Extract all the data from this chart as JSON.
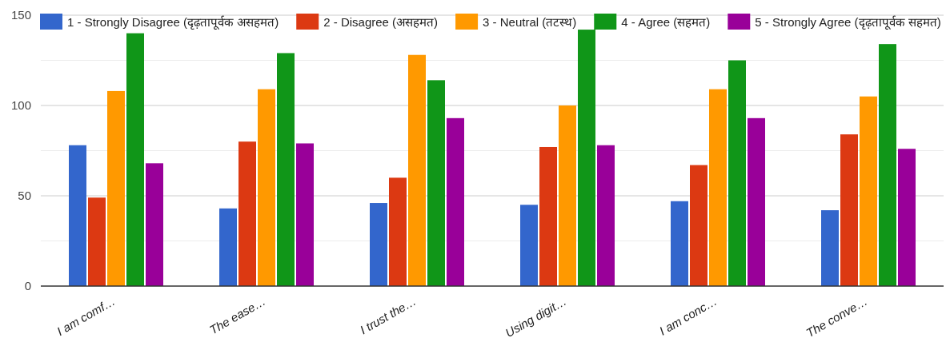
{
  "chart_data": {
    "type": "bar",
    "categories": [
      "I am comf…",
      "The ease…",
      "I trust the…",
      "Using digit…",
      "I am conc…",
      "The conve…"
    ],
    "series": [
      {
        "name": "1 - Strongly Disagree (दृढ़तापूर्वक असहमत)",
        "color": "#3366cc",
        "values": [
          78,
          43,
          46,
          45,
          47,
          42
        ]
      },
      {
        "name": "2 - Disagree (असहमत)",
        "color": "#dc3912",
        "values": [
          49,
          80,
          60,
          77,
          67,
          84
        ]
      },
      {
        "name": "3 - Neutral (तटस्थ)",
        "color": "#ff9900",
        "values": [
          108,
          109,
          128,
          100,
          109,
          105
        ]
      },
      {
        "name": "4 - Agree (सहमत)",
        "color": "#109618",
        "values": [
          140,
          129,
          114,
          142,
          125,
          134
        ]
      },
      {
        "name": "5 - Strongly Agree (दृढ़तापूर्वक सहमत)",
        "color": "#990099",
        "values": [
          68,
          79,
          93,
          78,
          93,
          76
        ]
      }
    ],
    "ylim": [
      0,
      150
    ],
    "yticks": [
      0,
      {
        "value": 25,
        "label": null
      },
      50,
      {
        "value": 75,
        "label": null
      },
      100,
      {
        "value": 125,
        "label": null
      },
      150
    ],
    "grid": true,
    "legend": "top"
  }
}
